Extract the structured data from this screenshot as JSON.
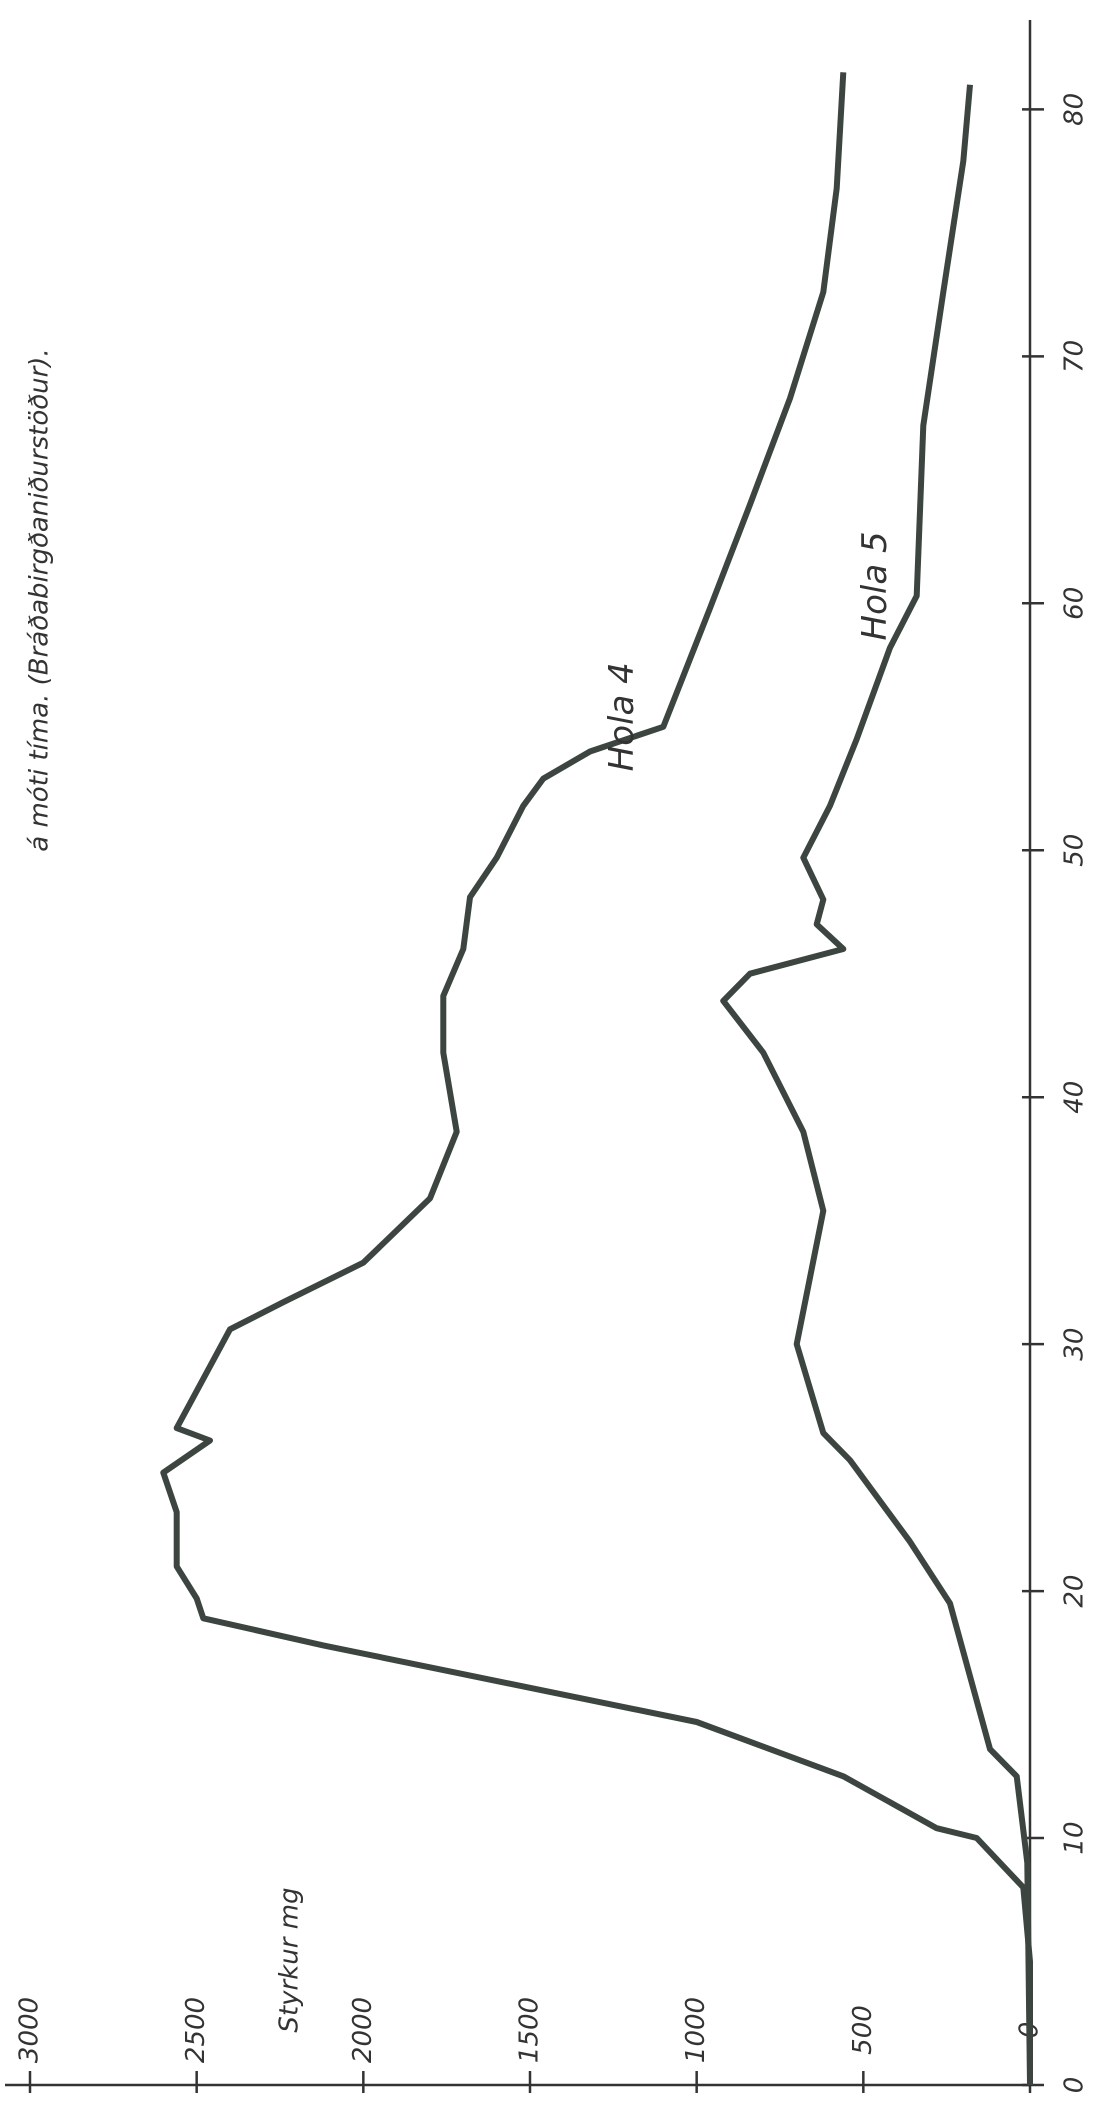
{
  "chart_data": {
    "type": "line",
    "title": "á móti tíma. (Bráðabirgðaniðurstöður).",
    "y_label": "Styrkur mg",
    "xlim": [
      0,
      82
    ],
    "xticks": [
      0,
      10,
      20,
      30,
      40,
      50,
      60,
      70,
      80
    ],
    "ylim": [
      0,
      3000
    ],
    "yticks": [
      0,
      500,
      1000,
      1500,
      2000,
      2500,
      3000
    ],
    "grid": false,
    "series": [
      {
        "name": "Hola 4",
        "color": "#3d4540",
        "x": [
          0,
          5,
          8,
          10,
          10.4,
          12.5,
          14.7,
          16.8,
          17.8,
          18.9,
          19.7,
          21,
          23.2,
          24.8,
          26.1,
          26.6,
          30.6,
          31.7,
          33.3,
          35.9,
          38.6,
          41.8,
          44.1,
          46,
          48.1,
          49.7,
          51.8,
          52.9,
          54,
          55,
          59.8,
          64,
          68.3,
          72.6,
          76.8,
          81.5
        ],
        "values": [
          0,
          0,
          20,
          160,
          280,
          560,
          1000,
          1760,
          2120,
          2480,
          2500,
          2560,
          2560,
          2600,
          2460,
          2560,
          2400,
          2240,
          2000,
          1800,
          1720,
          1760,
          1760,
          1700,
          1680,
          1600,
          1520,
          1460,
          1320,
          1100,
          960,
          840,
          720,
          620,
          580,
          560
        ]
      },
      {
        "name": "Hola 5",
        "color": "#3d4540",
        "x": [
          0,
          9,
          12.5,
          13.6,
          19.5,
          22,
          25.3,
          26.4,
          30,
          32.7,
          35.4,
          38.6,
          41.8,
          43.9,
          45,
          46,
          47,
          48,
          49.7,
          51.8,
          54.5,
          58.2,
          60.3,
          67.2,
          72.6,
          77.9,
          81
        ],
        "values": [
          0,
          8,
          40,
          120,
          240,
          360,
          540,
          620,
          700,
          660,
          620,
          680,
          800,
          920,
          840,
          560,
          640,
          620,
          680,
          600,
          520,
          420,
          340,
          320,
          260,
          200,
          180
        ]
      }
    ]
  }
}
